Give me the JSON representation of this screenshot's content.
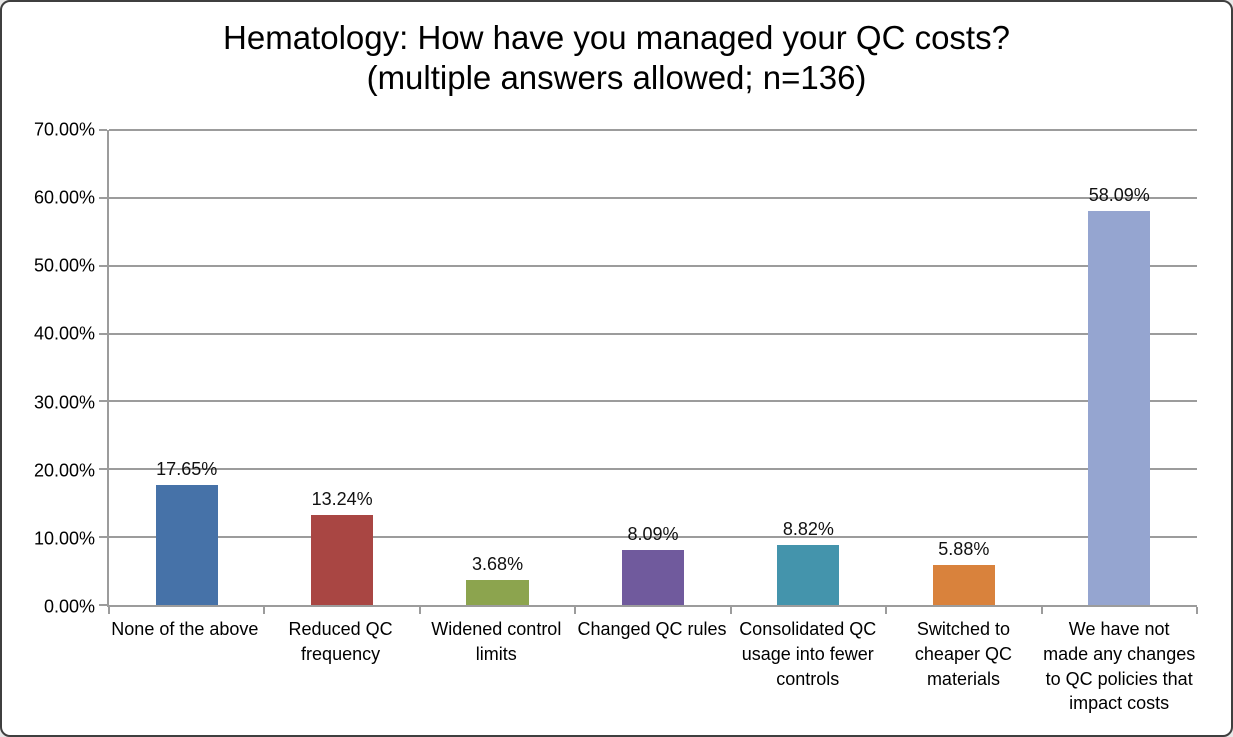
{
  "title": {
    "line1": "Hematology: How have you managed your QC costs?",
    "line2": "(multiple answers allowed; n=136)"
  },
  "chart_data": {
    "type": "bar",
    "title": "Hematology: How have you managed your QC costs? (multiple answers allowed; n=136)",
    "sample_size": 136,
    "categories": [
      "None of the above",
      "Reduced QC frequency",
      "Widened control limits",
      "Changed QC rules",
      "Consolidated QC usage into fewer controls",
      "Switched to cheaper QC materials",
      "We have not made any changes to QC policies that impact costs"
    ],
    "category_label_lines": [
      [
        "None of the above"
      ],
      [
        "Reduced QC",
        "frequency"
      ],
      [
        "Widened control",
        "limits"
      ],
      [
        "Changed QC rules"
      ],
      [
        "Consolidated QC",
        "usage into fewer",
        "controls"
      ],
      [
        "Switched to",
        "cheaper QC",
        "materials"
      ],
      [
        "We have not",
        "made any changes",
        "to QC policies that",
        "impact costs"
      ]
    ],
    "values": [
      17.65,
      13.24,
      3.68,
      8.09,
      8.82,
      5.88,
      58.09
    ],
    "value_labels": [
      "17.65%",
      "13.24%",
      "3.68%",
      "8.09%",
      "8.82%",
      "5.88%",
      "58.09%"
    ],
    "bar_colors": [
      "#4672A8",
      "#A94643",
      "#8CA44E",
      "#705A9D",
      "#4494AC",
      "#D9823C",
      "#95A5D0"
    ],
    "xlabel": "",
    "ylabel": "",
    "ylim": [
      0,
      70
    ],
    "ytick_step": 10,
    "ytick_labels": [
      "0.00%",
      "10.00%",
      "20.00%",
      "30.00%",
      "40.00%",
      "50.00%",
      "60.00%",
      "70.00%"
    ],
    "grid": "on",
    "legend": "none"
  },
  "colors": {
    "gridline": "#9c9c9c",
    "axis": "#9c9c9c",
    "frame_border": "#3f3f3f",
    "title_text": "#000000",
    "label_text": "#111111",
    "background": "#ffffff"
  }
}
